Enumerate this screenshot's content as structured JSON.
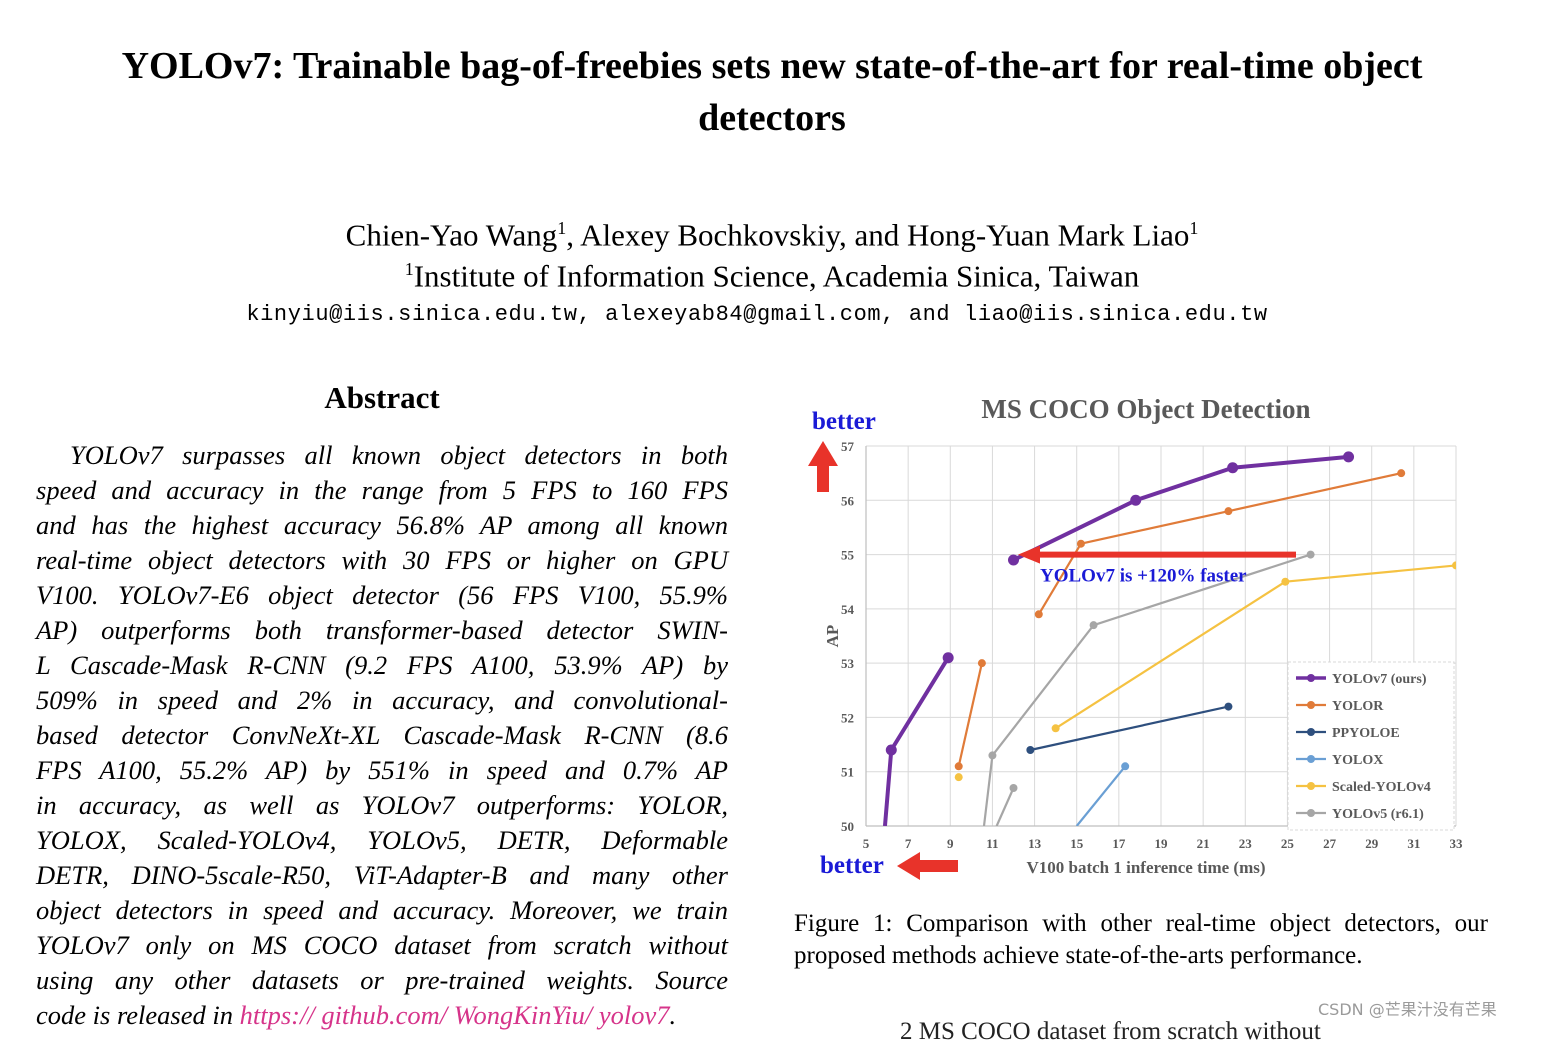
{
  "paper": {
    "title_line1": "YOLOv7: Trainable bag-of-freebies sets new state-of-the-art for real-time object",
    "title_line2": "detectors",
    "author1": "Chien-Yao Wang",
    "author1_mark": "1",
    "author_rest": ", Alexey Bochkovskiy, and Hong-Yuan Mark Liao",
    "author3_mark": "1",
    "affiliation_mark": "1",
    "affiliation": "Institute of Information Science, Academia Sinica, Taiwan",
    "emails": "kinyiu@iis.sinica.edu.tw, alexeyab84@gmail.com, and liao@iis.sinica.edu.tw"
  },
  "abstract": {
    "heading": "Abstract",
    "lines": [
      "YOLOv7 surpasses all known object detectors in both",
      "speed and accuracy in the range from 5 FPS to 160 FPS",
      "and has the highest accuracy 56.8% AP among all known",
      "real-time object detectors with 30 FPS or higher on GPU",
      "V100.  YOLOv7-E6 object detector (56 FPS V100, 55.9%",
      "AP) outperforms both transformer-based detector SWIN-",
      "L Cascade-Mask R-CNN (9.2 FPS A100, 53.9% AP) by",
      "509% in speed and 2% in accuracy, and convolutional-",
      "based detector ConvNeXt-XL Cascade-Mask R-CNN (8.6",
      "FPS A100, 55.2% AP) by 551% in speed and 0.7% AP",
      "in accuracy, as well as YOLOv7 outperforms:  YOLOR,",
      "YOLOX, Scaled-YOLOv4, YOLOv5, DETR, Deformable",
      "DETR, DINO-5scale-R50, ViT-Adapter-B and many other",
      "object detectors in speed and accuracy. Moreover, we train",
      "YOLOv7 only on MS COCO dataset from scratch without",
      "using any other datasets or pre-trained weights.  Source"
    ],
    "last_line_prefix": "code is released in ",
    "link": "https:// github.com/ WongKinYiu/ yolov7",
    "last_line_suffix": "."
  },
  "chart_data": {
    "type": "line",
    "title": "MS COCO Object Detection",
    "xlabel": "V100 batch 1 inference time (ms)",
    "ylabel": "AP",
    "xlim": [
      5,
      33
    ],
    "ylim": [
      50,
      57
    ],
    "xticks": [
      5,
      7,
      9,
      11,
      13,
      15,
      17,
      19,
      21,
      23,
      25,
      27,
      29,
      31,
      33
    ],
    "yticks": [
      50,
      51,
      52,
      53,
      54,
      55,
      56,
      57
    ],
    "grid": true,
    "legend_position": "bottom-right",
    "series": [
      {
        "name": "YOLOv7 (ours)",
        "color": "#7030a0",
        "points": [
          [
            5.9,
            50.0
          ],
          [
            6.2,
            51.4
          ],
          [
            8.9,
            53.1
          ]
        ]
      },
      {
        "name": "YOLOv7 (ours)",
        "color": "#7030a0",
        "points": [
          [
            12.0,
            54.9
          ],
          [
            17.8,
            56.0
          ],
          [
            22.4,
            56.6
          ],
          [
            27.9,
            56.8
          ]
        ]
      },
      {
        "name": "YOLOR",
        "color": "#e07b39",
        "points": [
          [
            9.4,
            51.1
          ],
          [
            10.5,
            53.0
          ]
        ]
      },
      {
        "name": "YOLOR",
        "color": "#e07b39",
        "points": [
          [
            13.2,
            53.9
          ],
          [
            15.2,
            55.2
          ],
          [
            22.2,
            55.8
          ],
          [
            30.4,
            56.5
          ]
        ]
      },
      {
        "name": "PPYOLOE",
        "color": "#2e4f7e",
        "points": [
          [
            12.8,
            51.4
          ],
          [
            22.2,
            52.2
          ]
        ]
      },
      {
        "name": "YOLOX",
        "color": "#6a9fd4",
        "points": [
          [
            15.0,
            50.0
          ],
          [
            17.3,
            51.1
          ]
        ]
      },
      {
        "name": "Scaled-YOLOv4",
        "color": "#f5c242",
        "points": [
          [
            14.0,
            51.8
          ],
          [
            24.9,
            54.5
          ],
          [
            33.0,
            54.8
          ]
        ]
      },
      {
        "name": "YOLOv5 (r6.1)",
        "color": "#a6a6a6",
        "points": [
          [
            10.6,
            50.0
          ],
          [
            11.0,
            51.3
          ],
          [
            15.8,
            53.7
          ],
          [
            26.1,
            55.0
          ]
        ]
      },
      {
        "name": "YOLOv5 (r6.1)",
        "color": "#a6a6a6",
        "points": [
          [
            11.2,
            50.0
          ],
          [
            12.0,
            50.7
          ]
        ]
      }
    ],
    "single_points": [
      {
        "name": "Scaled-YOLOv4",
        "color": "#f5c242",
        "x": 9.4,
        "y": 50.9
      }
    ],
    "annotations": {
      "better_up": "better",
      "better_left": "better",
      "speedup": "YOLOv7 is +120% faster",
      "arrow_color": "#e8332a",
      "better_color": "#1a1ad6"
    }
  },
  "figure": {
    "caption_line1": "Figure 1:  Comparison with other real-time object detectors, our",
    "caption_line2": "proposed methods achieve state-of-the-arts performance."
  },
  "footer": {
    "watermark": "CSDN @芒果汁没有芒果",
    "cutoff_text": "2 MS COCO dataset from scratch without"
  }
}
